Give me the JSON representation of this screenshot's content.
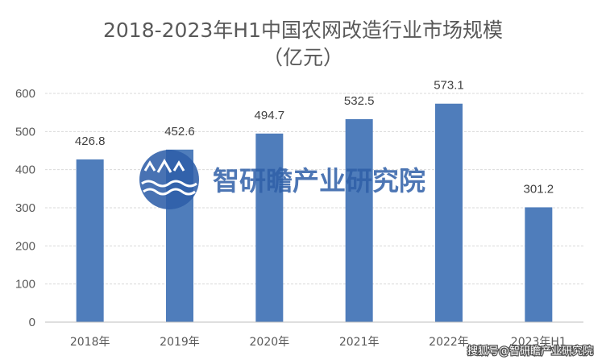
{
  "chart_data": {
    "type": "bar",
    "title": "2018-2023年H1中国农网改造行业市场规模",
    "subtitle": "（亿元）",
    "categories": [
      "2018年",
      "2019年",
      "2020年",
      "2021年",
      "2022年",
      "2023年H1"
    ],
    "values": [
      426.8,
      452.6,
      494.7,
      532.5,
      573.1,
      301.2
    ],
    "value_labels": [
      "426.8",
      "452.6",
      "494.7",
      "532.5",
      "573.1",
      "301.2"
    ],
    "yticks": [
      "0",
      "100",
      "200",
      "300",
      "400",
      "500",
      "600"
    ],
    "ylim": [
      0,
      600
    ],
    "grid": true,
    "legend": "none",
    "bar_color": "#4f7dbb"
  },
  "watermark": {
    "text": "智研瞻产业研究院"
  },
  "source_label": "搜狐号@智研瞻产业研究院",
  "colors": {
    "watermark": "#2f5fa8",
    "grid": "#d9d9d9",
    "axis": "#bfbfbf"
  }
}
